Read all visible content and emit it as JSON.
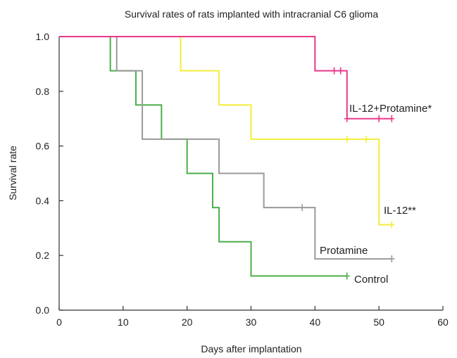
{
  "chart_data": {
    "type": "line",
    "title": "Survival rates of rats implanted with intracranial C6 glioma",
    "xlabel": "Days after implantation",
    "ylabel": "Survival rate",
    "xlim": [
      0,
      60
    ],
    "ylim": [
      0,
      1.0
    ],
    "xticks": [
      0,
      10,
      20,
      30,
      40,
      50,
      60
    ],
    "yticks": [
      "0.0",
      "0.2",
      "0.4",
      "0.6",
      "0.8",
      "1.0"
    ],
    "grid": false,
    "legend": "direct labels at line ends",
    "series": [
      {
        "name": "IL-12+Protamine*",
        "color": "#e8388a",
        "steps": [
          [
            0,
            1.0
          ],
          [
            8,
            1.0
          ],
          [
            40,
            0.875
          ],
          [
            45,
            0.7
          ],
          [
            52,
            0.7
          ]
        ],
        "censored": [
          [
            43,
            0.875
          ],
          [
            44,
            0.875
          ],
          [
            45,
            0.7
          ],
          [
            50,
            0.7
          ],
          [
            52,
            0.7
          ]
        ]
      },
      {
        "name": "IL-12**",
        "color": "#f2ee3a",
        "steps": [
          [
            0,
            1.0
          ],
          [
            8,
            1.0
          ],
          [
            19,
            0.875
          ],
          [
            25,
            0.75
          ],
          [
            30,
            0.625
          ],
          [
            50,
            0.3125
          ],
          [
            52,
            0.3125
          ]
        ],
        "censored": [
          [
            45,
            0.625
          ],
          [
            48,
            0.625
          ],
          [
            52,
            0.3125
          ]
        ]
      },
      {
        "name": "Protamine",
        "color": "#9a9a9a",
        "steps": [
          [
            0,
            1.0
          ],
          [
            8,
            1.0
          ],
          [
            9,
            0.875
          ],
          [
            13,
            0.625
          ],
          [
            25,
            0.5
          ],
          [
            32,
            0.375
          ],
          [
            40,
            0.1875
          ],
          [
            52,
            0.1875
          ]
        ],
        "censored": [
          [
            38,
            0.375
          ],
          [
            52,
            0.1875
          ]
        ]
      },
      {
        "name": "Control",
        "color": "#4caf4a",
        "steps": [
          [
            0,
            1.0
          ],
          [
            8,
            0.875
          ],
          [
            12,
            0.75
          ],
          [
            16,
            0.625
          ],
          [
            20,
            0.5
          ],
          [
            24,
            0.375
          ],
          [
            25,
            0.25
          ],
          [
            30,
            0.125
          ],
          [
            45,
            0.125
          ]
        ],
        "censored": [
          [
            45,
            0.125
          ]
        ]
      }
    ]
  }
}
